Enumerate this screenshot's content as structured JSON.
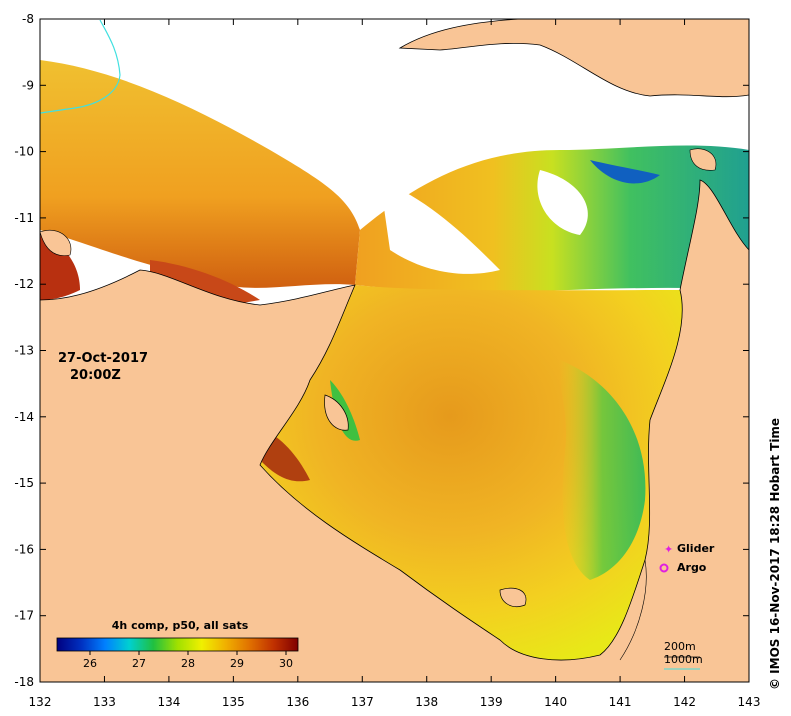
{
  "map": {
    "lon_ticks": [
      "132",
      "133",
      "134",
      "135",
      "136",
      "137",
      "138",
      "139",
      "140",
      "141",
      "142",
      "143"
    ],
    "lat_ticks": [
      "-8",
      "-9",
      "-10",
      "-11",
      "-12",
      "-13",
      "-14",
      "-15",
      "-16",
      "-17",
      "-18"
    ],
    "land_color": "#f9c596",
    "nodata_color": "#ffffff",
    "river_color": "#40e0e0"
  },
  "date": {
    "day": "27-Oct-2017",
    "time": "20:00Z"
  },
  "legend": {
    "glider": {
      "label": "Glider",
      "color": "#e020e0"
    },
    "argo": {
      "label": "Argo",
      "color": "#e020e0"
    }
  },
  "colorbar": {
    "title": "4h comp, p50, all sats",
    "tick_labels": [
      "26",
      "27",
      "28",
      "29",
      "30"
    ],
    "colors": [
      "#000080",
      "#0030c0",
      "#0080ff",
      "#00d0d0",
      "#20c040",
      "#a0e000",
      "#f0f000",
      "#f0b000",
      "#e07000",
      "#c03000",
      "#800000"
    ]
  },
  "depth_legend": {
    "line1": "200m",
    "line2": "1000m"
  },
  "credit": "© IMOS 16-Nov-2017 18:28 Hobart Time"
}
